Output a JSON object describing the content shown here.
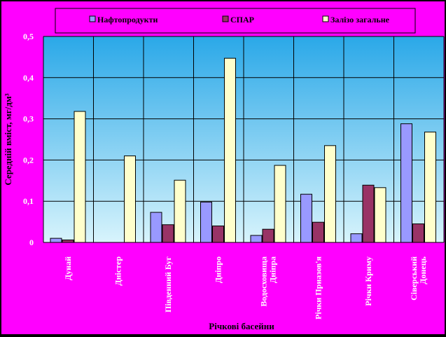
{
  "colors": {
    "frame_bg": "#ff00ff",
    "plot_top": "#2aa8e8",
    "plot_bottom": "#d8f4fc",
    "series_oil": "#9999ff",
    "series_spar": "#993366",
    "series_iron": "#ffffcc",
    "gridline": "#000000"
  },
  "chart_data": {
    "type": "bar",
    "title": "",
    "xlabel": "Річкові басейни",
    "ylabel": "Середній вміст, мг/дм³",
    "ylim": [
      0,
      0.5
    ],
    "yticks": [
      "0",
      "0,1",
      "0,2",
      "0,3",
      "0,4",
      "0,5"
    ],
    "grid": true,
    "legend_position": "top",
    "categories": [
      "Дунай",
      "Дністер",
      "Південний Буг",
      "Дніпро",
      "Водосховища Дніпра",
      "Річки Приазов'я",
      "Річки Криму",
      "Сіверський Донець"
    ],
    "series": [
      {
        "name": "Нафтопродукти",
        "values": [
          0.01,
          0.0,
          0.073,
          0.098,
          0.017,
          0.117,
          0.021,
          0.288
        ]
      },
      {
        "name": "СПАР",
        "values": [
          0.006,
          0.0,
          0.043,
          0.04,
          0.032,
          0.049,
          0.139,
          0.045
        ]
      },
      {
        "name": "Залізо загальне",
        "values": [
          0.318,
          0.21,
          0.151,
          0.447,
          0.187,
          0.235,
          0.133,
          0.268
        ]
      }
    ]
  }
}
